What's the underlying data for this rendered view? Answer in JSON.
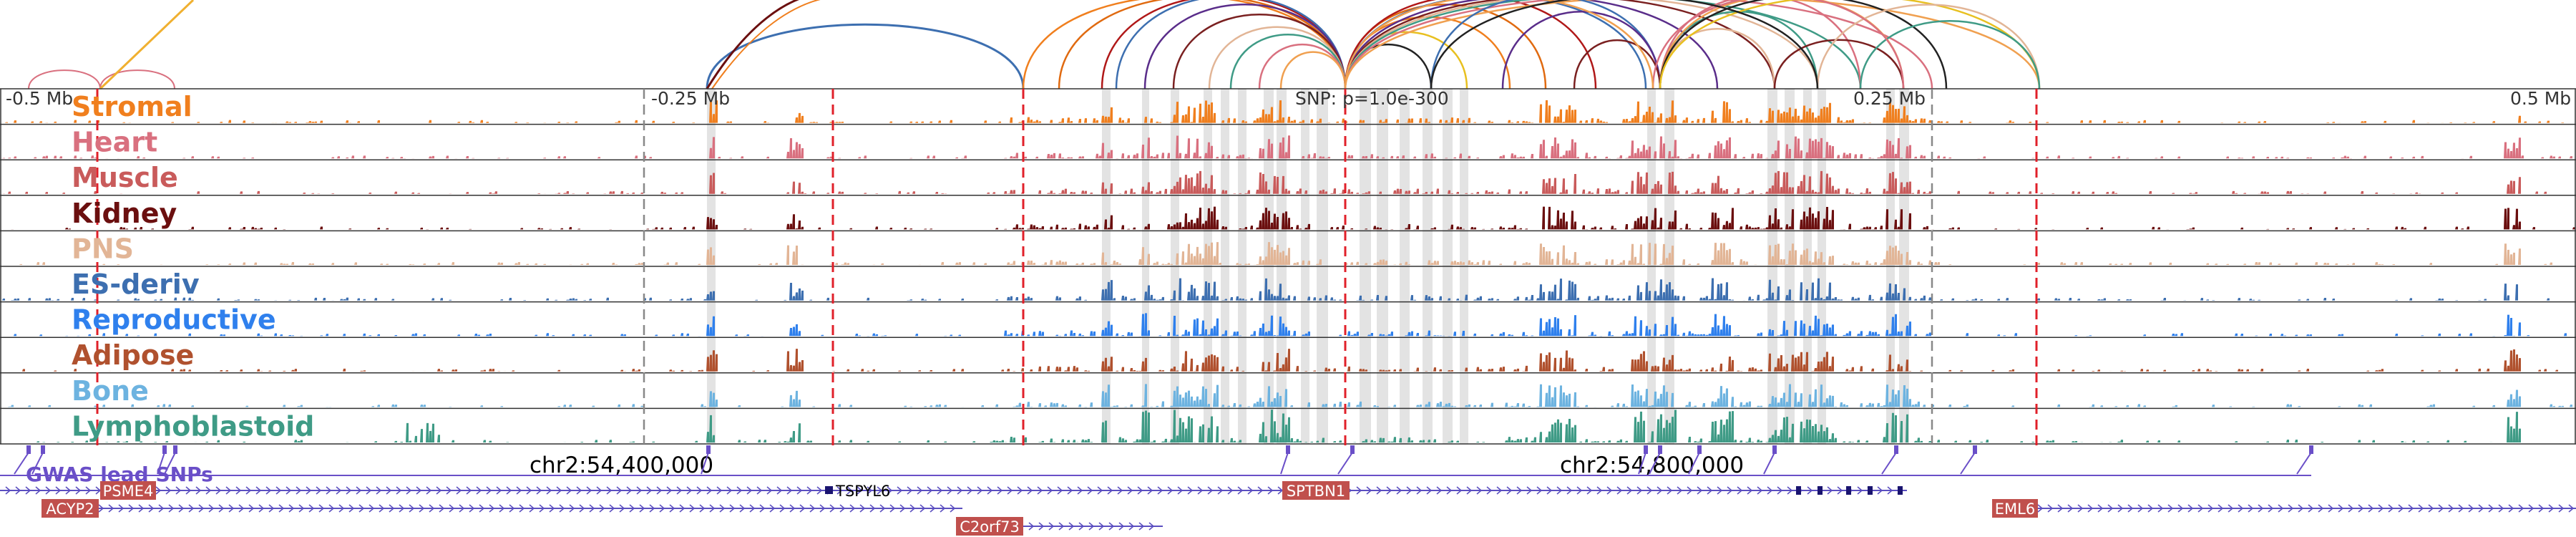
{
  "axis": {
    "left_label": "-0.5 Mb",
    "mid_left_label": "-0.25 Mb",
    "snp_label": "SNP: p=1.0e-300",
    "mid_right_label": "0.25 Mb",
    "right_label": "0.5 Mb"
  },
  "tracks": [
    {
      "name": "Stromal",
      "color": "#f07f1e"
    },
    {
      "name": "Heart",
      "color": "#d9707f"
    },
    {
      "name": "Muscle",
      "color": "#c95b5b"
    },
    {
      "name": "Kidney",
      "color": "#6b0f0f"
    },
    {
      "name": "PNS",
      "color": "#e2b596"
    },
    {
      "name": "ES-deriv",
      "color": "#3d6fb0"
    },
    {
      "name": "Reproductive",
      "color": "#2f80ed"
    },
    {
      "name": "Adipose",
      "color": "#b0512e"
    },
    {
      "name": "Bone",
      "color": "#6db3e0"
    },
    {
      "name": "Lymphoblastoid",
      "color": "#3f9b86"
    }
  ],
  "gwas": {
    "label": "GWAS lead SNPs",
    "color": "#6a4fc8"
  },
  "coordinates": {
    "left": "chr2:54,400,000",
    "right": "chr2:54,800,000"
  },
  "genes": [
    {
      "name": "PSME4",
      "boxed": true
    },
    {
      "name": "ACYP2",
      "boxed": true
    },
    {
      "name": "TSPYL6",
      "boxed": false
    },
    {
      "name": "SPTBN1",
      "boxed": true
    },
    {
      "name": "C2orf73",
      "boxed": true
    },
    {
      "name": "EML6",
      "boxed": true
    }
  ],
  "colors": {
    "panel_border": "#333333",
    "highlight": "#d0d0d0",
    "red_marker": "#e0202a",
    "gray_marker": "#888888",
    "gene_box": "#c0504d",
    "gene_line": "#5b4fc0"
  }
}
